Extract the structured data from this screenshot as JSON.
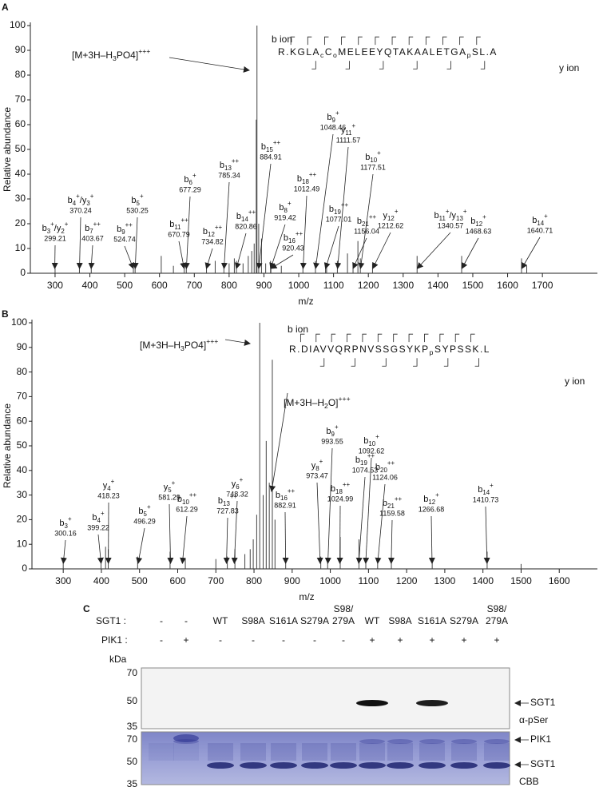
{
  "chart_data": [
    {
      "type": "stem",
      "panel": "A",
      "xlabel": "m/z",
      "ylabel": "Relative abundance",
      "color": "#444444",
      "xlim": [
        229,
        1858
      ],
      "ylim": [
        0,
        100
      ],
      "xticks": [
        300,
        400,
        500,
        600,
        700,
        800,
        900,
        1000,
        1100,
        1200,
        1300,
        1400,
        1500,
        1600,
        1700
      ],
      "yticks": [
        0,
        10,
        20,
        30,
        40,
        50,
        60,
        70,
        80,
        90,
        100
      ],
      "x": [
        300,
        370,
        404,
        525,
        530,
        605,
        640,
        671,
        677,
        735,
        760,
        785,
        800,
        815,
        821,
        840,
        855,
        865,
        872,
        878,
        880,
        885,
        893,
        905,
        919,
        920,
        950,
        1012,
        1048,
        1077,
        1080,
        1111,
        1140,
        1156,
        1170,
        1177,
        1212,
        1340,
        1468,
        1640,
        1655
      ],
      "values": [
        2,
        3,
        2,
        3,
        4,
        7,
        3,
        3,
        4,
        3,
        5,
        3,
        4,
        6,
        5,
        4,
        7,
        9,
        12,
        62,
        100,
        20,
        14,
        4,
        5,
        4,
        3,
        4,
        5,
        3,
        4,
        5,
        8,
        4,
        13,
        6,
        4,
        7,
        7,
        6,
        3
      ],
      "annotations": [
        {
          "label": [
            {
              "t": "b"
            },
            {
              "sub": "3"
            },
            {
              "sup": "+"
            },
            {
              "t": "/y"
            },
            {
              "sub": "2"
            },
            {
              "sup": "+"
            }
          ],
          "mz": 299.21
        },
        {
          "label": [
            {
              "t": "b"
            },
            {
              "sub": "4"
            },
            {
              "sup": "+"
            },
            {
              "t": "/y"
            },
            {
              "sub": "3"
            },
            {
              "sup": "+"
            }
          ],
          "mz": 370.24
        },
        {
          "label": [
            {
              "t": "b"
            },
            {
              "sub": "7"
            },
            {
              "sup": "++"
            }
          ],
          "mz": 403.67
        },
        {
          "label": [
            {
              "t": "b"
            },
            {
              "sub": "9"
            },
            {
              "sup": "++"
            }
          ],
          "mz": 524.74
        },
        {
          "label": [
            {
              "t": "b"
            },
            {
              "sub": "5"
            },
            {
              "sup": "+"
            }
          ],
          "mz": 530.25
        },
        {
          "label": [
            {
              "t": "b"
            },
            {
              "sub": "11"
            },
            {
              "sup": "++"
            }
          ],
          "mz": 670.79
        },
        {
          "label": [
            {
              "t": "b"
            },
            {
              "sub": "6"
            },
            {
              "sup": "+"
            }
          ],
          "mz": 677.29
        },
        {
          "label": [
            {
              "t": "b"
            },
            {
              "sub": "12"
            },
            {
              "sup": "++"
            }
          ],
          "mz": 734.82
        },
        {
          "label": [
            {
              "t": "b"
            },
            {
              "sub": "13"
            },
            {
              "sup": "++"
            }
          ],
          "mz": 785.34
        },
        {
          "label": [
            {
              "t": "b"
            },
            {
              "sub": "14"
            },
            {
              "sup": "++"
            }
          ],
          "mz": 820.86
        },
        {
          "label": [
            {
              "t": "b"
            },
            {
              "sub": "15"
            },
            {
              "sup": "++"
            }
          ],
          "mz": 884.91
        },
        {
          "label": [
            {
              "t": "b"
            },
            {
              "sub": "8"
            },
            {
              "sup": "+"
            }
          ],
          "mz": 919.42
        },
        {
          "label": [
            {
              "t": "b"
            },
            {
              "sub": "16"
            },
            {
              "sup": "++"
            }
          ],
          "mz": 920.43
        },
        {
          "label": [
            {
              "t": "b"
            },
            {
              "sub": "18"
            },
            {
              "sup": "++"
            }
          ],
          "mz": 1012.49
        },
        {
          "label": [
            {
              "t": "b"
            },
            {
              "sub": "9"
            },
            {
              "sup": "+"
            }
          ],
          "mz": 1048.46
        },
        {
          "label": [
            {
              "t": "b"
            },
            {
              "sub": "19"
            },
            {
              "sup": "++"
            }
          ],
          "mz": 1077.01
        },
        {
          "label": [
            {
              "t": "y"
            },
            {
              "sub": "11"
            },
            {
              "sup": "+"
            }
          ],
          "mz": 1111.57
        },
        {
          "label": [
            {
              "t": "b"
            },
            {
              "sub": "21"
            },
            {
              "sup": "++"
            }
          ],
          "mz": 1156.04
        },
        {
          "label": [
            {
              "t": "b"
            },
            {
              "sub": "10"
            },
            {
              "sup": "+"
            }
          ],
          "mz": 1177.51
        },
        {
          "label": [
            {
              "t": "y"
            },
            {
              "sub": "12"
            },
            {
              "sup": "+"
            }
          ],
          "mz": 1212.62
        },
        {
          "label": [
            {
              "t": "b"
            },
            {
              "sub": "11"
            },
            {
              "sup": "+"
            },
            {
              "t": "/y"
            },
            {
              "sub": "13"
            },
            {
              "sup": "+"
            }
          ],
          "mz": 1340.57
        },
        {
          "label": [
            {
              "t": "b"
            },
            {
              "sub": "12"
            },
            {
              "sup": "+"
            }
          ],
          "mz": 1468.63
        },
        {
          "label": [
            {
              "t": "b"
            },
            {
              "sub": "14"
            },
            {
              "sup": "+"
            }
          ],
          "mz": 1640.71
        }
      ],
      "precursors": [
        {
          "label": [
            {
              "t": "[M+3H–H"
            },
            {
              "sub": "3"
            },
            {
              "t": "PO4]"
            },
            {
              "sup": "+++"
            }
          ]
        }
      ],
      "ion_labels": [
        "b ion",
        "y ion"
      ],
      "sequence": [
        {
          "t": "R.KGLA"
        },
        {
          "sub": "c"
        },
        {
          "t": "C"
        },
        {
          "sub": "o"
        },
        {
          "t": "MELEEYQTAKAALETGA"
        },
        {
          "sub": "p"
        },
        {
          "t": "SL.A"
        }
      ]
    },
    {
      "type": "stem",
      "panel": "B",
      "xlabel": "m/z",
      "ylabel": "Relative abundance",
      "color": "#444444",
      "xlim": [
        218,
        1700
      ],
      "ylim": [
        0,
        100
      ],
      "xticks": [
        300,
        400,
        500,
        600,
        700,
        800,
        900,
        1000,
        1100,
        1200,
        1300,
        1400,
        1500,
        1600
      ],
      "yticks": [
        0,
        10,
        20,
        30,
        40,
        50,
        60,
        70,
        80,
        90,
        100
      ],
      "x": [
        300,
        399,
        411,
        418,
        495,
        580,
        620,
        700,
        730,
        750,
        776,
        790,
        798,
        807,
        815,
        824,
        832,
        840,
        848,
        855,
        883,
        975,
        993,
        1026,
        1075,
        1093,
        1124,
        1160,
        1267,
        1411,
        1500
      ],
      "values": [
        3,
        4,
        9,
        8,
        5,
        7,
        4,
        4,
        5,
        8,
        6,
        8,
        12,
        22,
        100,
        30,
        52,
        35,
        85,
        20,
        4,
        5,
        4,
        13,
        12,
        4,
        4,
        3,
        4,
        7,
        2
      ],
      "annotations": [
        {
          "label": [
            {
              "t": "b"
            },
            {
              "sub": "3"
            },
            {
              "sup": "+"
            }
          ],
          "mz": 300.16
        },
        {
          "label": [
            {
              "t": "b"
            },
            {
              "sub": "4"
            },
            {
              "sup": "+"
            }
          ],
          "mz": 399.22
        },
        {
          "label": [
            {
              "t": "y"
            },
            {
              "sub": "4"
            },
            {
              "sup": "+"
            }
          ],
          "mz": 418.23
        },
        {
          "label": [
            {
              "t": "b"
            },
            {
              "sub": "5"
            },
            {
              "sup": "+"
            }
          ],
          "mz": 496.29
        },
        {
          "label": [
            {
              "t": "y"
            },
            {
              "sub": "5"
            },
            {
              "sup": "+"
            }
          ],
          "mz": 581.29
        },
        {
          "label": [
            {
              "t": "b"
            },
            {
              "sub": "10"
            },
            {
              "sup": "++"
            }
          ],
          "mz": 612.29
        },
        {
          "label": [
            {
              "t": "b"
            },
            {
              "sub": "13"
            },
            {
              "sup": "++"
            }
          ],
          "mz": 727.83
        },
        {
          "label": [
            {
              "t": "y"
            },
            {
              "sub": "6"
            },
            {
              "sup": "+"
            }
          ],
          "mz": 748.32
        },
        {
          "label": [
            {
              "t": "b"
            },
            {
              "sub": "16"
            },
            {
              "sup": "++"
            }
          ],
          "mz": 882.91
        },
        {
          "label": [
            {
              "t": "y"
            },
            {
              "sub": "8"
            },
            {
              "sup": "+"
            }
          ],
          "mz": 973.47
        },
        {
          "label": [
            {
              "t": "b"
            },
            {
              "sub": "9"
            },
            {
              "sup": "+"
            }
          ],
          "mz": 993.55
        },
        {
          "label": [
            {
              "t": "b"
            },
            {
              "sub": "18"
            },
            {
              "sup": "++"
            }
          ],
          "mz": 1024.99
        },
        {
          "label": [
            {
              "t": "b"
            },
            {
              "sub": "19"
            },
            {
              "sup": "++"
            }
          ],
          "mz": 1074.53
        },
        {
          "label": [
            {
              "t": "b"
            },
            {
              "sub": "10"
            },
            {
              "sup": "+"
            }
          ],
          "mz": 1092.62
        },
        {
          "label": [
            {
              "t": "b"
            },
            {
              "sub": "20"
            },
            {
              "sup": "++"
            }
          ],
          "mz": 1124.06
        },
        {
          "label": [
            {
              "t": "b"
            },
            {
              "sub": "21"
            },
            {
              "sup": "++"
            }
          ],
          "mz": 1159.58
        },
        {
          "label": [
            {
              "t": "b"
            },
            {
              "sub": "12"
            },
            {
              "sup": "+"
            }
          ],
          "mz": 1266.68
        },
        {
          "label": [
            {
              "t": "b"
            },
            {
              "sub": "14"
            },
            {
              "sup": "+"
            }
          ],
          "mz": 1410.73
        }
      ],
      "precursors": [
        {
          "label": [
            {
              "t": "[M+3H–H"
            },
            {
              "sub": "3"
            },
            {
              "t": "PO4]"
            },
            {
              "sup": "+++"
            }
          ]
        },
        {
          "label": [
            {
              "t": "[M+3H–H"
            },
            {
              "sub": "2"
            },
            {
              "t": "O]"
            },
            {
              "sup": "+++"
            }
          ]
        }
      ],
      "ion_labels": [
        "b ion",
        "y ion"
      ],
      "sequence": [
        {
          "t": "R.DIAVVQRPNVSSGSYKP"
        },
        {
          "sub": "p"
        },
        {
          "t": "SYPSSK.L"
        }
      ]
    }
  ],
  "gel": {
    "panel": "C",
    "unit": "kDa",
    "rows": [
      {
        "label": "SGT1 :",
        "lanes": [
          [
            "-"
          ],
          [
            "-"
          ],
          [
            "WT"
          ],
          [
            "S98A"
          ],
          [
            "S161A"
          ],
          [
            "S279A"
          ],
          [
            "S98/",
            "279A"
          ],
          [
            "WT"
          ],
          [
            "S98A"
          ],
          [
            "S161A"
          ],
          [
            "S279A"
          ],
          [
            "S98/",
            "279A"
          ]
        ]
      },
      {
        "label": "PIK1 :",
        "lanes": [
          [
            "-"
          ],
          [
            "+"
          ],
          [
            "-"
          ],
          [
            "-"
          ],
          [
            "-"
          ],
          [
            "-"
          ],
          [
            "-"
          ],
          [
            "+"
          ],
          [
            "+"
          ],
          [
            "+"
          ],
          [
            "+"
          ],
          [
            "+"
          ]
        ]
      }
    ],
    "blots": [
      {
        "markers": [
          70,
          50,
          35
        ],
        "labels": [
          "SGT1",
          "α-pSer"
        ]
      },
      {
        "markers": [
          70,
          50,
          35
        ],
        "labels": [
          "PIK1",
          "SGT1",
          "CBB"
        ]
      }
    ]
  }
}
